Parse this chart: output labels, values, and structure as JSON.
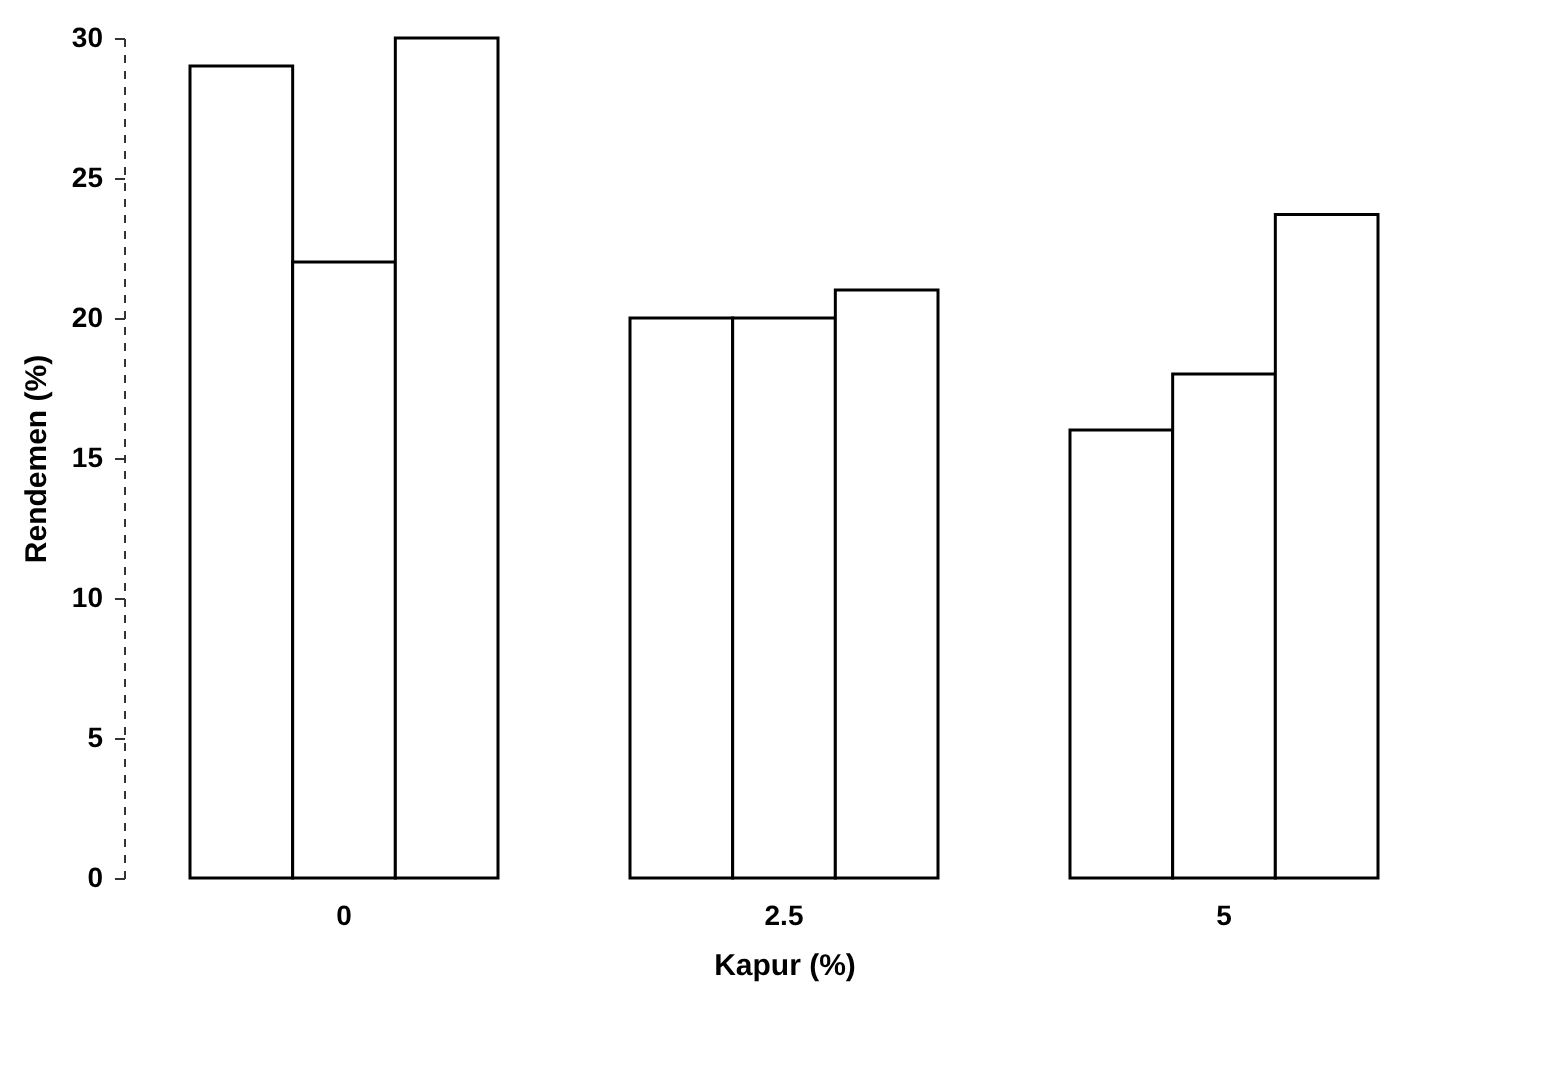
{
  "chart_data": {
    "type": "bar",
    "xlabel": "Kapur (%)",
    "ylabel": "Rendemen (%)",
    "categories": [
      "0",
      "2.5",
      "5"
    ],
    "series": [
      {
        "color": "#ffffff",
        "values": [
          29,
          20,
          16
        ]
      },
      {
        "color": "#ffffff",
        "values": [
          22,
          20,
          18
        ]
      },
      {
        "color": "#ffffff",
        "values": [
          30,
          21,
          23.7
        ]
      }
    ],
    "ylim": [
      0,
      30
    ],
    "yticks": [
      0,
      5,
      10,
      15,
      20,
      25,
      30
    ],
    "grid": false,
    "legend": false
  }
}
